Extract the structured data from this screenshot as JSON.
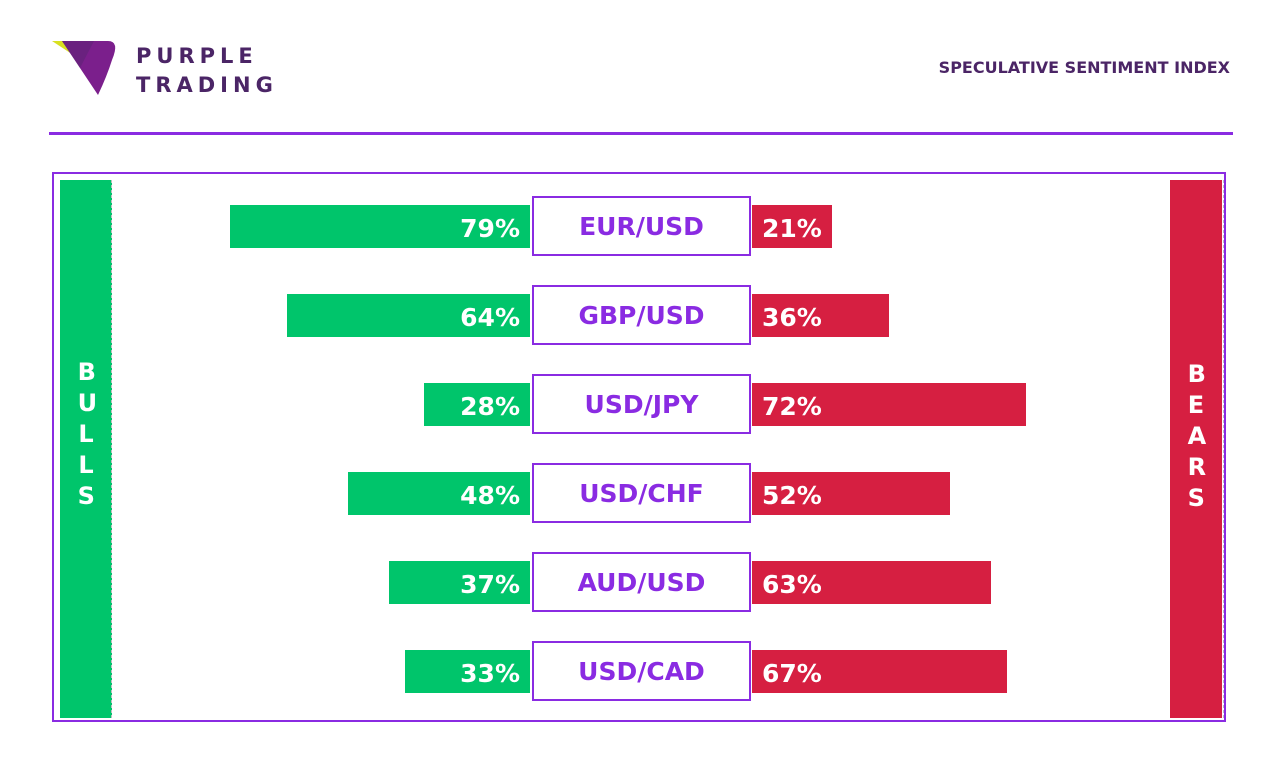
{
  "brand": {
    "line1": "PURPLE",
    "line2": "TRADING"
  },
  "header": {
    "title": "SPECULATIVE SENTIMENT INDEX"
  },
  "sides": {
    "left": "BULLS",
    "right": "BEARS"
  },
  "colors": {
    "purple": "#8a2be2",
    "dark_purple": "#4b2566",
    "bull": "#00c56b",
    "bear": "#d61f41",
    "logo_yellow": "#d8e021",
    "logo_purple": "#7b1f8c"
  },
  "chart_data": {
    "type": "bar",
    "categories": [
      "EUR/USD",
      "GBP/USD",
      "USD/JPY",
      "USD/CHF",
      "AUD/USD",
      "USD/CAD"
    ],
    "series": [
      {
        "name": "BULLS",
        "values": [
          79,
          64,
          28,
          48,
          37,
          33
        ]
      },
      {
        "name": "BEARS",
        "values": [
          21,
          36,
          72,
          52,
          63,
          67
        ]
      }
    ],
    "labels": {
      "bulls": [
        "79%",
        "64%",
        "28%",
        "48%",
        "37%",
        "33%"
      ],
      "bears": [
        "21%",
        "36%",
        "72%",
        "52%",
        "63%",
        "67%"
      ]
    },
    "title": "SPECULATIVE SENTIMENT INDEX",
    "ylim": [
      0,
      100
    ],
    "grid": false
  }
}
